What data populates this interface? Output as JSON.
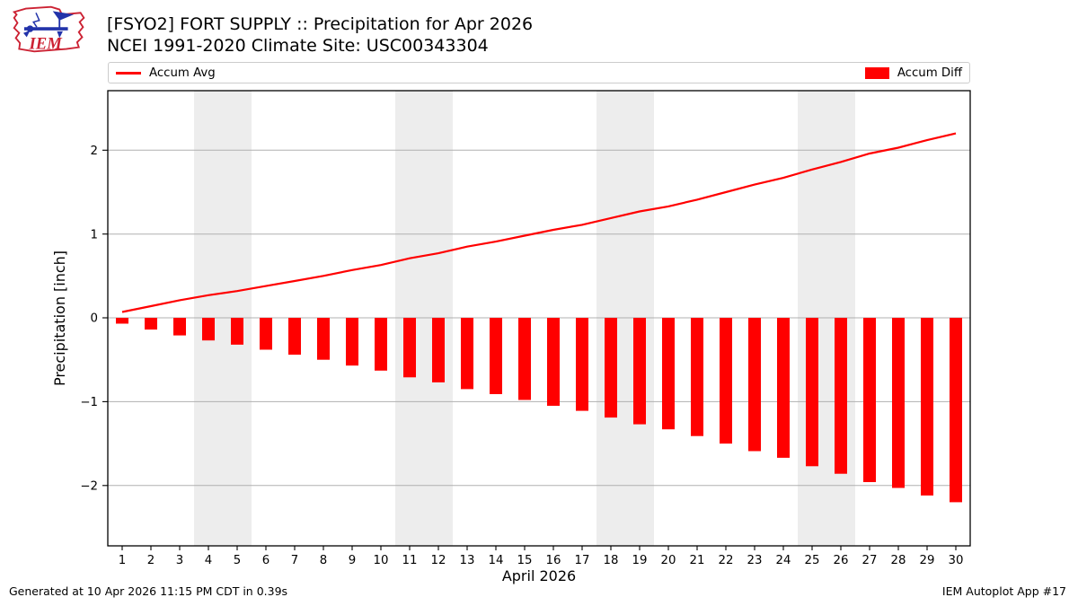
{
  "header": {
    "logo_text": "IEM",
    "title_line1": "[FSYO2] FORT SUPPLY :: Precipitation for Apr 2026",
    "title_line2": "NCEI 1991-2020 Climate Site: USC00343304"
  },
  "legend": {
    "avg_label": "Accum Avg",
    "diff_label": "Accum Diff"
  },
  "footer": {
    "left": "Generated at 10 Apr 2026 11:15 PM CDT in 0.39s",
    "right": "IEM Autoplot App #17"
  },
  "colors": {
    "red": "#ff0000",
    "grid": "#b0b0b0",
    "band": "#ededed",
    "spine": "#000000",
    "text": "#000000",
    "legend_border": "#cccccc",
    "logo_red": "#cc2233",
    "logo_blue": "#2233aa"
  },
  "chart_data": {
    "type": "bar",
    "title": "[FSYO2] FORT SUPPLY :: Precipitation for Apr 2026",
    "subtitle": "NCEI 1991-2020 Climate Site: USC00343304",
    "x": [
      1,
      2,
      3,
      4,
      5,
      6,
      7,
      8,
      9,
      10,
      11,
      12,
      13,
      14,
      15,
      16,
      17,
      18,
      19,
      20,
      21,
      22,
      23,
      24,
      25,
      26,
      27,
      28,
      29,
      30
    ],
    "series": [
      {
        "name": "Accum Avg",
        "type": "line",
        "color": "#ff0000",
        "values": [
          0.07,
          0.14,
          0.21,
          0.27,
          0.32,
          0.38,
          0.44,
          0.5,
          0.57,
          0.63,
          0.71,
          0.77,
          0.85,
          0.91,
          0.98,
          1.05,
          1.11,
          1.19,
          1.27,
          1.33,
          1.41,
          1.5,
          1.59,
          1.67,
          1.77,
          1.86,
          1.96,
          2.03,
          2.12,
          2.2
        ]
      },
      {
        "name": "Accum Diff",
        "type": "bar",
        "color": "#ff0000",
        "values": [
          -0.07,
          -0.14,
          -0.21,
          -0.27,
          -0.32,
          -0.38,
          -0.44,
          -0.5,
          -0.57,
          -0.63,
          -0.71,
          -0.77,
          -0.85,
          -0.91,
          -0.98,
          -1.05,
          -1.11,
          -1.19,
          -1.27,
          -1.33,
          -1.41,
          -1.5,
          -1.59,
          -1.67,
          -1.77,
          -1.86,
          -1.96,
          -2.03,
          -2.12,
          -2.2
        ]
      }
    ],
    "xlabel": "April 2026",
    "ylabel": "Precipitation [inch]",
    "xlim": [
      0.5,
      30.5
    ],
    "ylim": [
      -2.72,
      2.71
    ],
    "yticks": [
      -2,
      -1,
      0,
      1,
      2
    ],
    "weekend_bands": [
      [
        3.5,
        5.5
      ],
      [
        10.5,
        12.5
      ],
      [
        17.5,
        19.5
      ],
      [
        24.5,
        26.5
      ]
    ],
    "grid": true,
    "legend_position": "top"
  }
}
